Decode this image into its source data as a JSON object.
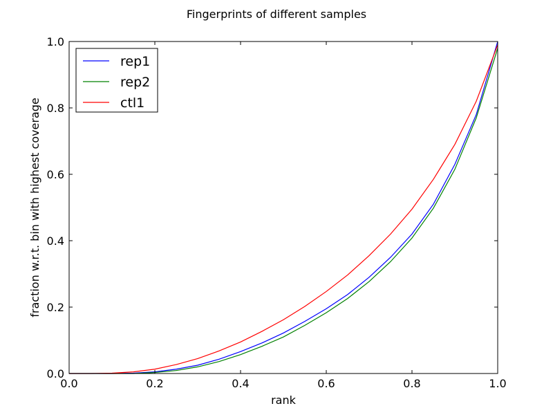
{
  "chart_data": {
    "type": "line",
    "title": "Fingerprints of different samples",
    "xlabel": "rank",
    "ylabel": "fraction w.r.t. bin with highest coverage",
    "xlim": [
      0.0,
      1.0
    ],
    "ylim": [
      0.0,
      1.0
    ],
    "xticks": [
      "0.0",
      "0.2",
      "0.4",
      "0.6",
      "0.8",
      "1.0"
    ],
    "yticks": [
      "0.0",
      "0.2",
      "0.4",
      "0.6",
      "0.8",
      "1.0"
    ],
    "grid": false,
    "legend_position": "top-left",
    "x": [
      0.0,
      0.05,
      0.1,
      0.15,
      0.2,
      0.25,
      0.3,
      0.35,
      0.4,
      0.45,
      0.5,
      0.55,
      0.6,
      0.65,
      0.7,
      0.75,
      0.8,
      0.85,
      0.9,
      0.95,
      1.0
    ],
    "series": [
      {
        "name": "rep1",
        "color": "#0000ff",
        "values": [
          0.0,
          0.0,
          0.0,
          0.001,
          0.005,
          0.013,
          0.025,
          0.043,
          0.066,
          0.092,
          0.122,
          0.157,
          0.195,
          0.238,
          0.29,
          0.35,
          0.42,
          0.51,
          0.63,
          0.78,
          1.0
        ]
      },
      {
        "name": "rep2",
        "color": "#008000",
        "values": [
          0.0,
          0.0,
          0.0,
          0.0,
          0.003,
          0.009,
          0.02,
          0.036,
          0.057,
          0.082,
          0.11,
          0.145,
          0.183,
          0.226,
          0.277,
          0.337,
          0.408,
          0.498,
          0.615,
          0.77,
          0.98
        ]
      },
      {
        "name": "ctl1",
        "color": "#ff0000",
        "values": [
          0.0,
          0.0,
          0.001,
          0.005,
          0.013,
          0.027,
          0.045,
          0.068,
          0.095,
          0.127,
          0.162,
          0.202,
          0.247,
          0.297,
          0.355,
          0.42,
          0.495,
          0.585,
          0.69,
          0.82,
          0.99
        ]
      }
    ]
  }
}
